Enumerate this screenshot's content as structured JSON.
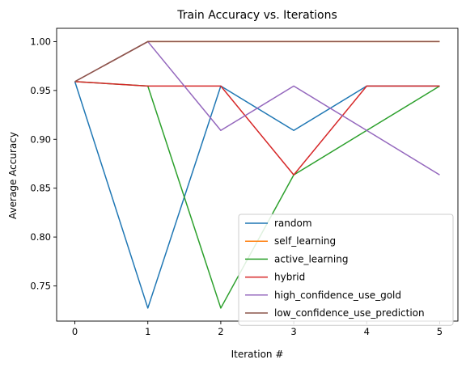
{
  "chart_data": {
    "type": "line",
    "title": "Train Accuracy vs. Iterations",
    "xlabel": "Iteration #",
    "ylabel": "Average Accuracy",
    "x": [
      0,
      1,
      2,
      3,
      4,
      5
    ],
    "xlim": [
      -0.25,
      5.25
    ],
    "ylim": [
      0.714,
      1.0136
    ],
    "xticks": [
      0,
      1,
      2,
      3,
      4,
      5
    ],
    "yticks": [
      0.75,
      0.8,
      0.85,
      0.9,
      0.95,
      1.0
    ],
    "ytick_labels": [
      "0.75",
      "0.80",
      "0.85",
      "0.90",
      "0.95",
      "1.00"
    ],
    "grid": false,
    "legend_position": "lower-right",
    "series": [
      {
        "name": "random",
        "color": "#1f77b4",
        "values": [
          0.9591,
          0.7273,
          0.9545,
          0.9091,
          0.9545,
          0.9545
        ]
      },
      {
        "name": "self_learning",
        "color": "#ff7f0e",
        "values": [
          0.9591,
          1.0,
          1.0,
          1.0,
          1.0,
          1.0
        ]
      },
      {
        "name": "active_learning",
        "color": "#2ca02c",
        "values": [
          0.9591,
          0.9545,
          0.7273,
          0.8636,
          0.9091,
          0.9545
        ]
      },
      {
        "name": "hybrid",
        "color": "#d62728",
        "values": [
          0.9591,
          0.9545,
          0.9545,
          0.8636,
          0.9545,
          0.9545
        ]
      },
      {
        "name": "high_confidence_use_gold",
        "color": "#9467bd",
        "values": [
          0.9591,
          1.0,
          0.9091,
          0.9545,
          0.9091,
          0.8636
        ]
      },
      {
        "name": "low_confidence_use_prediction",
        "color": "#8c564b",
        "values": [
          0.9591,
          1.0,
          1.0,
          1.0,
          1.0,
          1.0
        ]
      }
    ]
  }
}
